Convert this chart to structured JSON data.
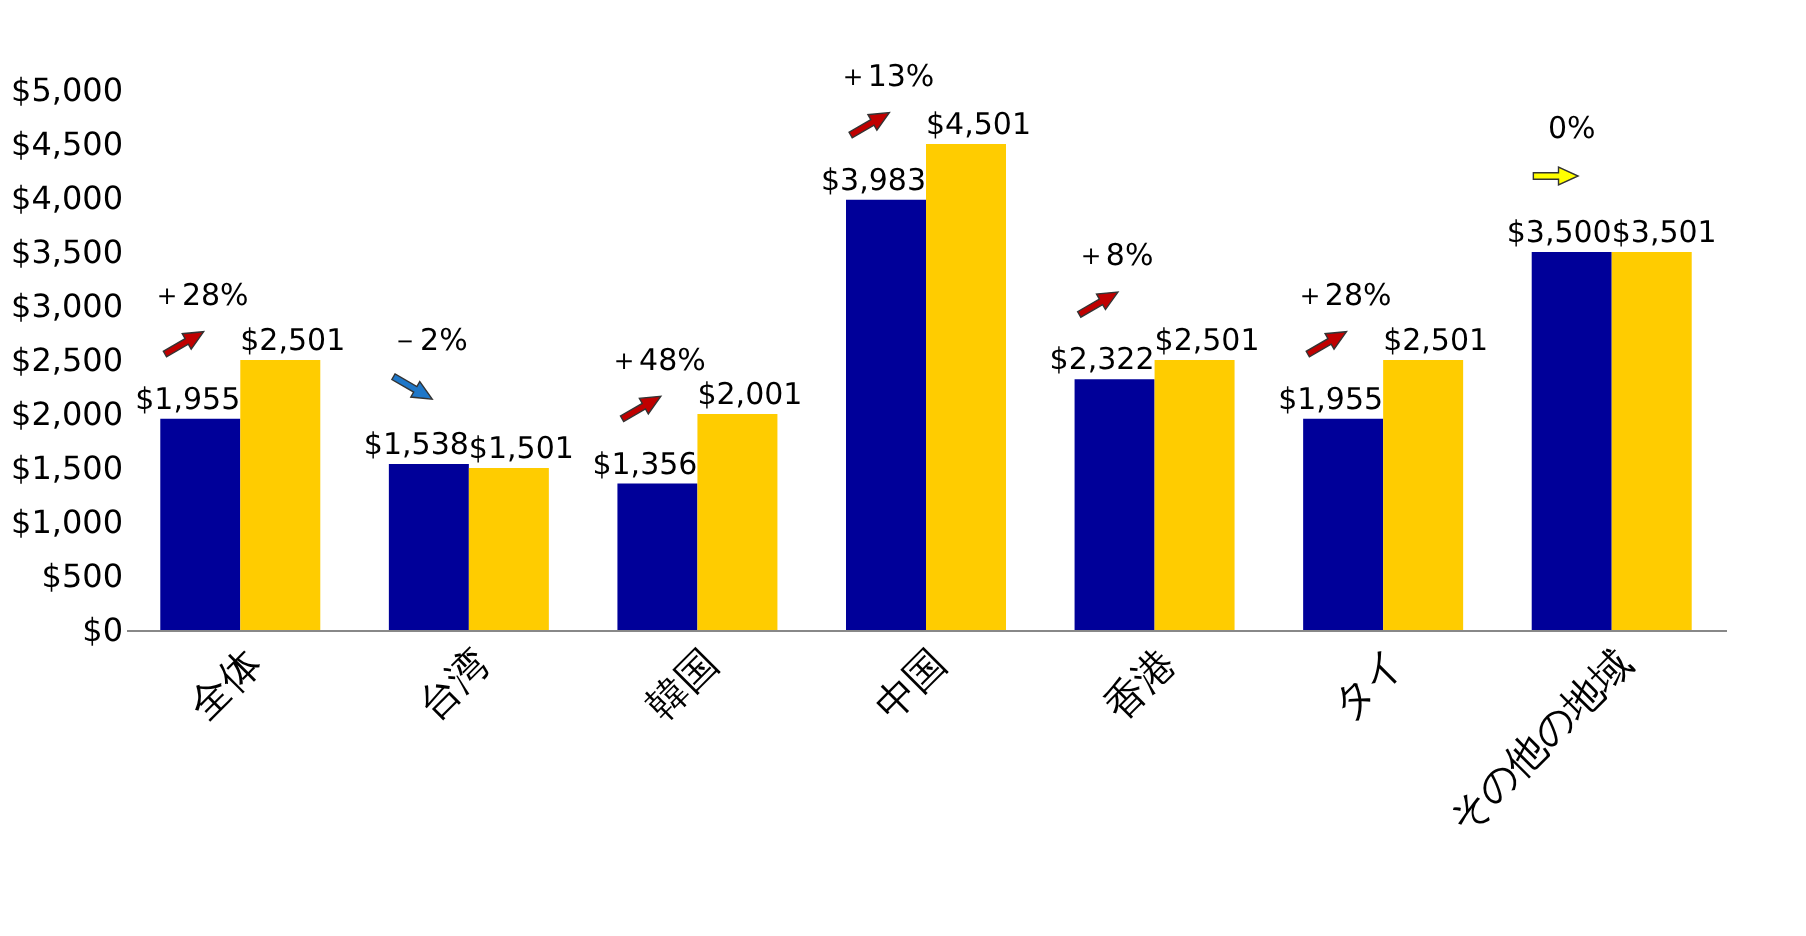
{
  "chart_data": {
    "type": "bar",
    "categories": [
      "全体",
      "台湾",
      "韓国",
      "中国",
      "香港",
      "タイ",
      "その他の地域"
    ],
    "series": [
      {
        "color": "#000099",
        "values": [
          1955,
          1538,
          1356,
          3983,
          2322,
          1955,
          3500
        ],
        "value_labels": [
          "$1,955",
          "$1,538",
          "$1,356",
          "$3,983",
          "$2,322",
          "$1,955",
          "$3,500"
        ]
      },
      {
        "color": "#ffcc00",
        "values": [
          2501,
          1501,
          2001,
          4501,
          2501,
          2501,
          3501
        ],
        "value_labels": [
          "$2,501",
          "$1,501",
          "$2,001",
          "$4,501",
          "$2,501",
          "$2,501",
          "$3,501"
        ]
      }
    ],
    "ylim": [
      0,
      5000
    ],
    "yticks": [
      {
        "value": 0,
        "label": "$0"
      },
      {
        "value": 500,
        "label": "$500"
      },
      {
        "value": 1000,
        "label": "$1,000"
      },
      {
        "value": 1500,
        "label": "$1,500"
      },
      {
        "value": 2000,
        "label": "$2,000"
      },
      {
        "value": 2500,
        "label": "$2,500"
      },
      {
        "value": 3000,
        "label": "$3,000"
      },
      {
        "value": 3500,
        "label": "$3,500"
      },
      {
        "value": 4000,
        "label": "$4,000"
      },
      {
        "value": 4500,
        "label": "$4,500"
      },
      {
        "value": 5000,
        "label": "$5,000"
      }
    ],
    "annotations": [
      "＋28%",
      "－2%",
      "＋48%",
      "＋13%",
      "＋8%",
      "＋28%",
      "0%"
    ],
    "grid": false,
    "legend": false
  }
}
